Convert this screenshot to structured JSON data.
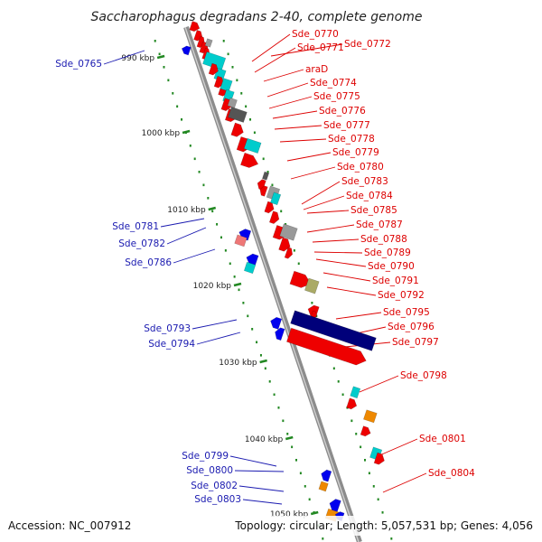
{
  "title": "Saccharophagus degradans 2-40, complete genome",
  "footer": {
    "accession": "Accession: NC_007912",
    "summary": "Topology: circular; Length: 5,057,531 bp; Genes: 4,056"
  },
  "colors": {
    "forward": "#ee0000",
    "reverse": "#0000ee",
    "cyan": "#00cccc",
    "gray": "#999999",
    "dark": "#555555",
    "navy": "#00007a",
    "olive": "#aaaa66",
    "orange": "#ee8800",
    "pink": "#ee7777",
    "right_label": "#dd0000",
    "left_label": "#1a1ab0",
    "ruler_tick": "#228822"
  },
  "ruler": [
    {
      "label": "990 kbp"
    },
    {
      "label": "1000 kbp"
    },
    {
      "label": "1010 kbp"
    },
    {
      "label": "1020 kbp"
    },
    {
      "label": "1030 kbp"
    },
    {
      "label": "1040 kbp"
    },
    {
      "label": "1050 kbp"
    }
  ],
  "right_labels": [
    "Sde_0770",
    "Sde_0771",
    "Sde_0772",
    "araD",
    "Sde_0774",
    "Sde_0775",
    "Sde_0776",
    "Sde_0777",
    "Sde_0778",
    "Sde_0779",
    "Sde_0780",
    "Sde_0783",
    "Sde_0784",
    "Sde_0785",
    "Sde_0787",
    "Sde_0788",
    "Sde_0789",
    "Sde_0790",
    "Sde_0791",
    "Sde_0792",
    "Sde_0795",
    "Sde_0796",
    "Sde_0797",
    "Sde_0798",
    "Sde_0801",
    "Sde_0804"
  ],
  "left_labels": [
    "Sde_0765",
    "Sde_0781",
    "Sde_0782",
    "Sde_0786",
    "Sde_0793",
    "Sde_0794",
    "Sde_0799",
    "Sde_0800",
    "Sde_0802",
    "Sde_0803"
  ]
}
